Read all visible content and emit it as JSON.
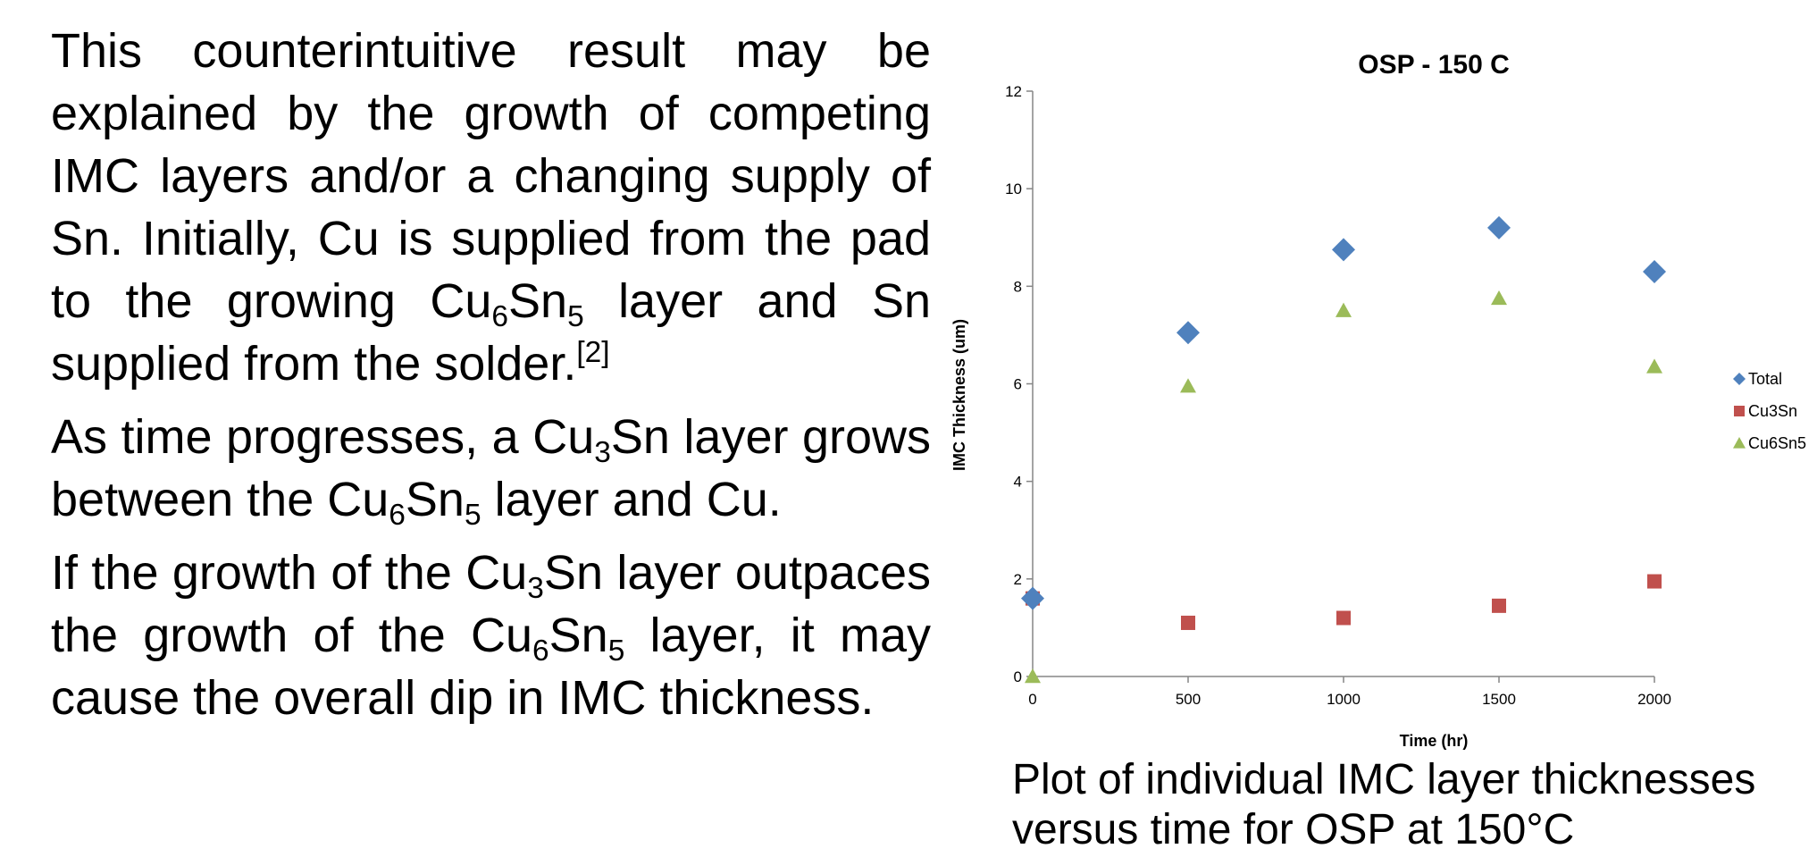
{
  "text": {
    "p1": {
      "t1": "This counterintuitive result may be explained by the growth of competing IMC layers and/or a changing supply of Sn. Initially, Cu is supplied from the pad to the growing Cu",
      "s1": "6",
      "t2": "Sn",
      "s2": "5",
      "t3": " layer and Sn supplied from the solder.",
      "ref": "[2]"
    },
    "p2": {
      "t1": "As time progresses, a Cu",
      "s1": "3",
      "t2": "Sn layer grows between the Cu",
      "s2": "6",
      "t3": "Sn",
      "s3": "5",
      "t4": " layer and Cu."
    },
    "p3": {
      "t1": "If the growth of the Cu",
      "s1": "3",
      "t2": "Sn layer outpaces the growth of the Cu",
      "s2": "6",
      "t3": "Sn",
      "s3": "5",
      "t4": " layer, it may cause the overall dip in IMC thickness."
    }
  },
  "caption": "Plot of individual IMC layer thicknesses versus time for OSP at 150°C",
  "chart_data": {
    "type": "scatter",
    "title": "OSP - 150 C",
    "xlabel": "Time (hr)",
    "ylabel": "IMC Thickness (um)",
    "xlim": [
      0,
      2000
    ],
    "ylim": [
      0,
      12
    ],
    "xticks": [
      "0",
      "500",
      "1000",
      "1500",
      "2000"
    ],
    "yticks": [
      "0",
      "2",
      "4",
      "6",
      "8",
      "10",
      "12"
    ],
    "grid": false,
    "legend_position": "right",
    "series": [
      {
        "name": "Total",
        "marker": "diamond",
        "color": "#4f81bd",
        "x": [
          0,
          500,
          1000,
          1500,
          2000
        ],
        "y": [
          1.6,
          7.05,
          8.75,
          9.2,
          8.3
        ]
      },
      {
        "name": "Cu3Sn",
        "marker": "square",
        "color": "#c0504d",
        "x": [
          0,
          500,
          1000,
          1500,
          2000
        ],
        "y": [
          1.6,
          1.1,
          1.2,
          1.45,
          1.95
        ]
      },
      {
        "name": "Cu6Sn5",
        "marker": "triangle",
        "color": "#9bbb59",
        "x": [
          0,
          500,
          1000,
          1500,
          2000
        ],
        "y": [
          0,
          5.95,
          7.5,
          7.75,
          6.35
        ]
      }
    ]
  }
}
